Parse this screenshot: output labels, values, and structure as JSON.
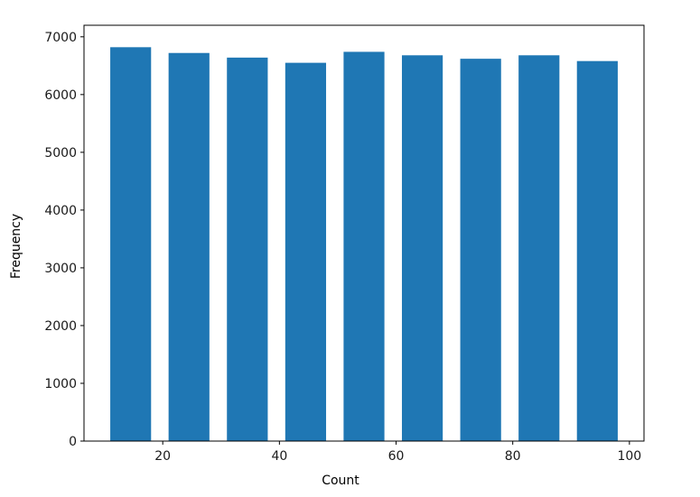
{
  "chart_data": {
    "type": "bar",
    "title": "",
    "xlabel": "Count",
    "ylabel": "Frequency",
    "bins": [
      {
        "start": 11,
        "end": 18,
        "value": 6820
      },
      {
        "start": 21,
        "end": 28,
        "value": 6720
      },
      {
        "start": 31,
        "end": 38,
        "value": 6640
      },
      {
        "start": 41,
        "end": 48,
        "value": 6550
      },
      {
        "start": 51,
        "end": 58,
        "value": 6740
      },
      {
        "start": 61,
        "end": 68,
        "value": 6680
      },
      {
        "start": 71,
        "end": 78,
        "value": 6620
      },
      {
        "start": 81,
        "end": 88,
        "value": 6680
      },
      {
        "start": 91,
        "end": 98,
        "value": 6580
      }
    ],
    "xlim": [
      6.5,
      102.5
    ],
    "ylim": [
      0,
      7200
    ],
    "xticks": [
      20,
      40,
      60,
      80,
      100
    ],
    "yticks": [
      0,
      1000,
      2000,
      3000,
      4000,
      5000,
      6000,
      7000
    ],
    "grid": false,
    "colors": {
      "bar": "#1f77b4",
      "axes": "#000000",
      "background": "#ffffff"
    }
  }
}
